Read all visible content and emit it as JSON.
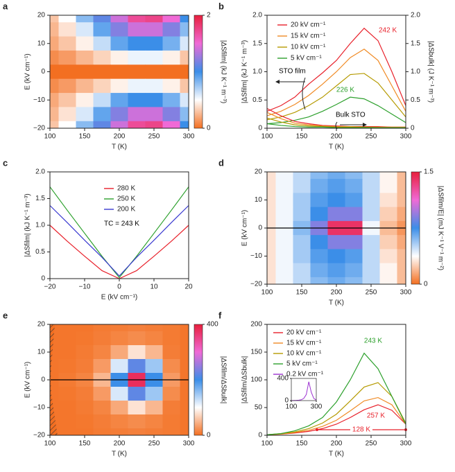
{
  "chart_data": [
    {
      "panel": "a",
      "type": "heatmap",
      "xlabel": "T (K)",
      "ylabel": "E (kV cm⁻¹)",
      "colorbar_label": "|ΔSfilm| (kJ K⁻¹ m⁻³)",
      "x": [
        100,
        125,
        150,
        175,
        200,
        225,
        250,
        275,
        300
      ],
      "y": [
        20,
        15,
        10,
        5,
        0,
        -5,
        -10,
        -15,
        -20
      ],
      "z": [
        [
          0.3,
          0.5,
          0.8,
          1.1,
          1.4,
          1.7,
          1.75,
          1.5,
          1.0
        ],
        [
          0.25,
          0.4,
          0.6,
          0.9,
          1.2,
          1.4,
          1.4,
          1.2,
          0.8
        ],
        [
          0.2,
          0.3,
          0.45,
          0.65,
          0.9,
          1.0,
          1.0,
          0.85,
          0.6
        ],
        [
          0.1,
          0.15,
          0.25,
          0.35,
          0.45,
          0.55,
          0.55,
          0.45,
          0.3
        ],
        [
          0,
          0,
          0,
          0,
          0,
          0,
          0,
          0,
          0
        ],
        [
          0.1,
          0.15,
          0.25,
          0.35,
          0.45,
          0.55,
          0.55,
          0.45,
          0.3
        ],
        [
          0.2,
          0.3,
          0.45,
          0.65,
          0.9,
          1.0,
          1.0,
          0.85,
          0.6
        ],
        [
          0.25,
          0.4,
          0.6,
          0.9,
          1.2,
          1.4,
          1.4,
          1.2,
          0.8
        ],
        [
          0.3,
          0.5,
          0.8,
          1.1,
          1.4,
          1.7,
          1.75,
          1.5,
          1.0
        ]
      ],
      "xlim": [
        100,
        300
      ],
      "ylim": [
        -20,
        20
      ],
      "xticks": [
        100,
        150,
        200,
        250,
        300
      ],
      "yticks": [
        {
          "value": -20,
          "label": "−20"
        },
        {
          "value": -10,
          "label": "−10"
        },
        0,
        10,
        20
      ],
      "zlim": [
        0,
        2
      ],
      "zticks": [
        0,
        2
      ],
      "colormap": [
        "#f36f21",
        "#ffffff",
        "#3b8ee8",
        "#f06ad6",
        "#e81f3c"
      ]
    },
    {
      "panel": "b",
      "type": "line",
      "xlabel": "T (K)",
      "ylabel": "|ΔSfilm| (kJ K⁻¹ m⁻³)",
      "y2label": "|ΔSbulk| (J K⁻¹ m⁻³)",
      "x": [
        100,
        120,
        140,
        160,
        180,
        200,
        220,
        240,
        260,
        280,
        300
      ],
      "xlim": [
        100,
        300
      ],
      "xticks": [
        100,
        150,
        200,
        250,
        300
      ],
      "ylim": [
        0,
        2
      ],
      "yticks": [
        0,
        0.5,
        {
          "value": 1,
          "label": "1.0"
        },
        1.5,
        {
          "value": 2,
          "label": "2.0"
        }
      ],
      "y2lim": [
        0,
        2
      ],
      "y2ticks": [
        0,
        0.5,
        {
          "value": 1,
          "label": "1.0"
        },
        1.5,
        {
          "value": 2,
          "label": "2.0"
        }
      ],
      "series": [
        {
          "name": "20 kV cm⁻¹",
          "color": "#e8202a",
          "values": [
            0.3,
            0.4,
            0.55,
            0.78,
            0.98,
            1.2,
            1.5,
            1.77,
            1.55,
            1.0,
            0.4
          ]
        },
        {
          "name": "15 kV cm⁻¹",
          "color": "#f08a24",
          "values": [
            0.22,
            0.3,
            0.42,
            0.58,
            0.78,
            1.0,
            1.25,
            1.4,
            1.2,
            0.75,
            0.3
          ]
        },
        {
          "name": "10 kV cm⁻¹",
          "color": "#b59a00",
          "values": [
            0.15,
            0.2,
            0.28,
            0.4,
            0.55,
            0.75,
            0.95,
            0.97,
            0.8,
            0.5,
            0.2
          ]
        },
        {
          "name": "5 kV cm⁻¹",
          "color": "#2ca02c",
          "values": [
            0.08,
            0.1,
            0.14,
            0.2,
            0.3,
            0.42,
            0.55,
            0.52,
            0.4,
            0.25,
            0.1
          ]
        },
        {
          "color": "#e8202a",
          "axis": "y2",
          "values": [
            0.35,
            0.22,
            0.12,
            0.08,
            0.05,
            0.04,
            0.03,
            0.03,
            0.03,
            0.02,
            0.02
          ]
        },
        {
          "color": "#f08a24",
          "axis": "y2",
          "values": [
            0.28,
            0.17,
            0.09,
            0.06,
            0.04,
            0.03,
            0.03,
            0.02,
            0.02,
            0.02,
            0.02
          ]
        },
        {
          "color": "#b59a00",
          "axis": "y2",
          "values": [
            0.18,
            0.11,
            0.06,
            0.04,
            0.03,
            0.02,
            0.02,
            0.02,
            0.01,
            0.01,
            0.01
          ]
        },
        {
          "color": "#2ca02c",
          "axis": "y2",
          "values": [
            0.08,
            0.05,
            0.03,
            0.02,
            0.02,
            0.01,
            0.01,
            0.01,
            0.01,
            0.01,
            0.01
          ]
        }
      ],
      "annotations": [
        {
          "text": "242 K",
          "color": "#e8202a"
        },
        {
          "text": "226 K",
          "color": "#2ca02c"
        },
        {
          "text": "STO film",
          "color": "#000000"
        },
        {
          "text": "Bulk STO",
          "color": "#000000"
        }
      ]
    },
    {
      "panel": "c",
      "type": "line",
      "xlabel": "E (kV cm⁻¹)",
      "ylabel": "|ΔSfilm| (kJ K⁻¹ m⁻³)",
      "x": [
        -20,
        -15,
        -10,
        -5,
        0,
        5,
        10,
        15,
        20
      ],
      "xlim": [
        -20,
        20
      ],
      "xticks": [
        {
          "value": -20,
          "label": "−20"
        },
        {
          "value": -10,
          "label": "−10"
        },
        0,
        10,
        20
      ],
      "ylim": [
        0,
        2
      ],
      "yticks": [
        0,
        0.5,
        {
          "value": 1,
          "label": "1.0"
        },
        1.5,
        {
          "value": 2,
          "label": "2.0"
        }
      ],
      "series": [
        {
          "name": "280 K",
          "color": "#e8202a",
          "values": [
            1.0,
            0.7,
            0.42,
            0.15,
            0,
            0.15,
            0.42,
            0.7,
            1.0
          ]
        },
        {
          "name": "250 K",
          "color": "#2ca02c",
          "values": [
            1.72,
            1.28,
            0.85,
            0.42,
            0.02,
            0.42,
            0.85,
            1.28,
            1.72
          ]
        },
        {
          "name": "200 K",
          "color": "#3a3ad0",
          "values": [
            1.37,
            1.05,
            0.72,
            0.4,
            0.05,
            0.4,
            0.72,
            1.05,
            1.37
          ]
        }
      ],
      "annotations": [
        {
          "text": "TC = 243 K",
          "color": "#000000"
        }
      ]
    },
    {
      "panel": "d",
      "type": "heatmap",
      "xlabel": "T (K)",
      "ylabel": "E (kV cm⁻¹)",
      "colorbar_label": "|ΔSfilm/E| (mJ K⁻¹ V⁻¹ m⁻²)",
      "x": [
        100,
        125,
        150,
        175,
        200,
        225,
        250,
        275,
        300
      ],
      "y": [
        20,
        15,
        10,
        5,
        0,
        -5,
        -10,
        -15,
        -20
      ],
      "z": [
        [
          0.3,
          0.4,
          0.5,
          0.6,
          0.65,
          0.6,
          0.5,
          0.35,
          0.2
        ],
        [
          0.3,
          0.4,
          0.5,
          0.65,
          0.7,
          0.65,
          0.5,
          0.35,
          0.2
        ],
        [
          0.3,
          0.4,
          0.55,
          0.7,
          0.75,
          0.7,
          0.5,
          0.3,
          0.2
        ],
        [
          0.3,
          0.4,
          0.55,
          0.75,
          0.9,
          0.9,
          0.5,
          0.25,
          0.15
        ],
        [
          0.3,
          0.4,
          0.6,
          0.9,
          1.4,
          1.4,
          0.4,
          0.2,
          0.1
        ],
        [
          0.3,
          0.4,
          0.55,
          0.75,
          0.9,
          0.9,
          0.5,
          0.25,
          0.15
        ],
        [
          0.3,
          0.4,
          0.55,
          0.7,
          0.75,
          0.7,
          0.5,
          0.3,
          0.2
        ],
        [
          0.3,
          0.4,
          0.5,
          0.65,
          0.7,
          0.65,
          0.5,
          0.35,
          0.2
        ],
        [
          0.3,
          0.4,
          0.5,
          0.6,
          0.65,
          0.6,
          0.5,
          0.35,
          0.2
        ]
      ],
      "xlim": [
        100,
        300
      ],
      "ylim": [
        -20,
        20
      ],
      "xticks": [
        100,
        150,
        200,
        250,
        300
      ],
      "yticks": [
        {
          "value": -20,
          "label": "−20"
        },
        {
          "value": -10,
          "label": "−10"
        },
        0,
        10,
        20
      ],
      "zlim": [
        0,
        1.5
      ],
      "zticks": [
        0,
        1.5
      ],
      "colormap": [
        "#f36f21",
        "#ffffff",
        "#3b8ee8",
        "#f06ad6",
        "#e81f3c"
      ]
    },
    {
      "panel": "e",
      "type": "heatmap",
      "xlabel": "T (K)",
      "ylabel": "E (kV cm⁻¹)",
      "colorbar_label": "|ΔSfilm/ΔSbulk|",
      "x": [
        100,
        125,
        150,
        175,
        200,
        225,
        250,
        275,
        300
      ],
      "y": [
        20,
        15,
        10,
        5,
        0,
        -5,
        -10,
        -15,
        -20
      ],
      "z": [
        [
          5,
          5,
          5,
          8,
          10,
          12,
          10,
          8,
          5
        ],
        [
          5,
          5,
          6,
          10,
          15,
          20,
          15,
          8,
          5
        ],
        [
          5,
          5,
          8,
          15,
          40,
          80,
          50,
          10,
          5
        ],
        [
          5,
          6,
          10,
          30,
          120,
          220,
          150,
          20,
          5
        ],
        [
          5,
          8,
          15,
          50,
          200,
          380,
          200,
          30,
          5
        ],
        [
          5,
          6,
          10,
          30,
          120,
          220,
          150,
          20,
          5
        ],
        [
          5,
          5,
          8,
          15,
          40,
          80,
          50,
          10,
          5
        ],
        [
          5,
          5,
          6,
          10,
          15,
          20,
          15,
          8,
          5
        ],
        [
          5,
          5,
          5,
          8,
          10,
          12,
          10,
          8,
          5
        ]
      ],
      "xlim": [
        100,
        300
      ],
      "ylim": [
        -20,
        20
      ],
      "xticks": [
        100,
        150,
        200,
        250,
        300
      ],
      "yticks": [
        {
          "value": -20,
          "label": "−20"
        },
        {
          "value": -10,
          "label": "−10"
        },
        0,
        10,
        20
      ],
      "zlim": [
        0,
        400
      ],
      "zticks": [
        0,
        400
      ],
      "colormap": [
        "#f36f21",
        "#ffffff",
        "#3b8ee8",
        "#f06ad6",
        "#e81f3c"
      ]
    },
    {
      "panel": "f",
      "type": "line",
      "xlabel": "T (K)",
      "ylabel": "|ΔSfilm/ΔSbulk|",
      "x": [
        100,
        120,
        140,
        160,
        180,
        200,
        220,
        240,
        260,
        280,
        300
      ],
      "xlim": [
        100,
        300
      ],
      "xticks": [
        100,
        150,
        200,
        250,
        300
      ],
      "ylim": [
        0,
        200
      ],
      "yticks": [
        0,
        50,
        100,
        150,
        200
      ],
      "series": [
        {
          "name": "20 kV cm⁻¹",
          "color": "#e8202a",
          "values": [
            1,
            2,
            4,
            7,
            12,
            20,
            32,
            46,
            55,
            45,
            20
          ]
        },
        {
          "name": "15 kV cm⁻¹",
          "color": "#f08a24",
          "values": [
            1,
            2,
            5,
            9,
            16,
            27,
            44,
            62,
            68,
            55,
            20
          ]
        },
        {
          "name": "10 kV cm⁻¹",
          "color": "#b59a00",
          "values": [
            1,
            3,
            6,
            12,
            22,
            38,
            62,
            87,
            95,
            70,
            22
          ]
        },
        {
          "name": "5 kV cm⁻¹",
          "color": "#2ca02c",
          "values": [
            1,
            3,
            8,
            17,
            32,
            60,
            100,
            148,
            120,
            70,
            20
          ]
        }
      ],
      "inset": {
        "x": [
          100,
          120,
          140,
          160,
          180,
          200,
          220,
          240,
          260,
          280,
          300
        ],
        "xlim": [
          100,
          300
        ],
        "ylim": [
          0,
          400
        ],
        "xticks": [
          100,
          300
        ],
        "yticks": [
          0,
          400
        ],
        "series": [
          {
            "name": "0.2 kV cm⁻¹",
            "color": "#9b30d0",
            "values": [
              2,
              3,
              5,
              8,
              15,
              40,
              110,
              340,
              150,
              40,
              10
            ]
          }
        ]
      },
      "annotations": [
        {
          "text": "243 K",
          "color": "#2ca02c"
        },
        {
          "text": "257 K",
          "color": "#e8202a"
        }
      ],
      "span": {
        "label": "128 K",
        "color": "#e8202a",
        "x": [
          172,
          300
        ],
        "y": 10
      }
    }
  ]
}
